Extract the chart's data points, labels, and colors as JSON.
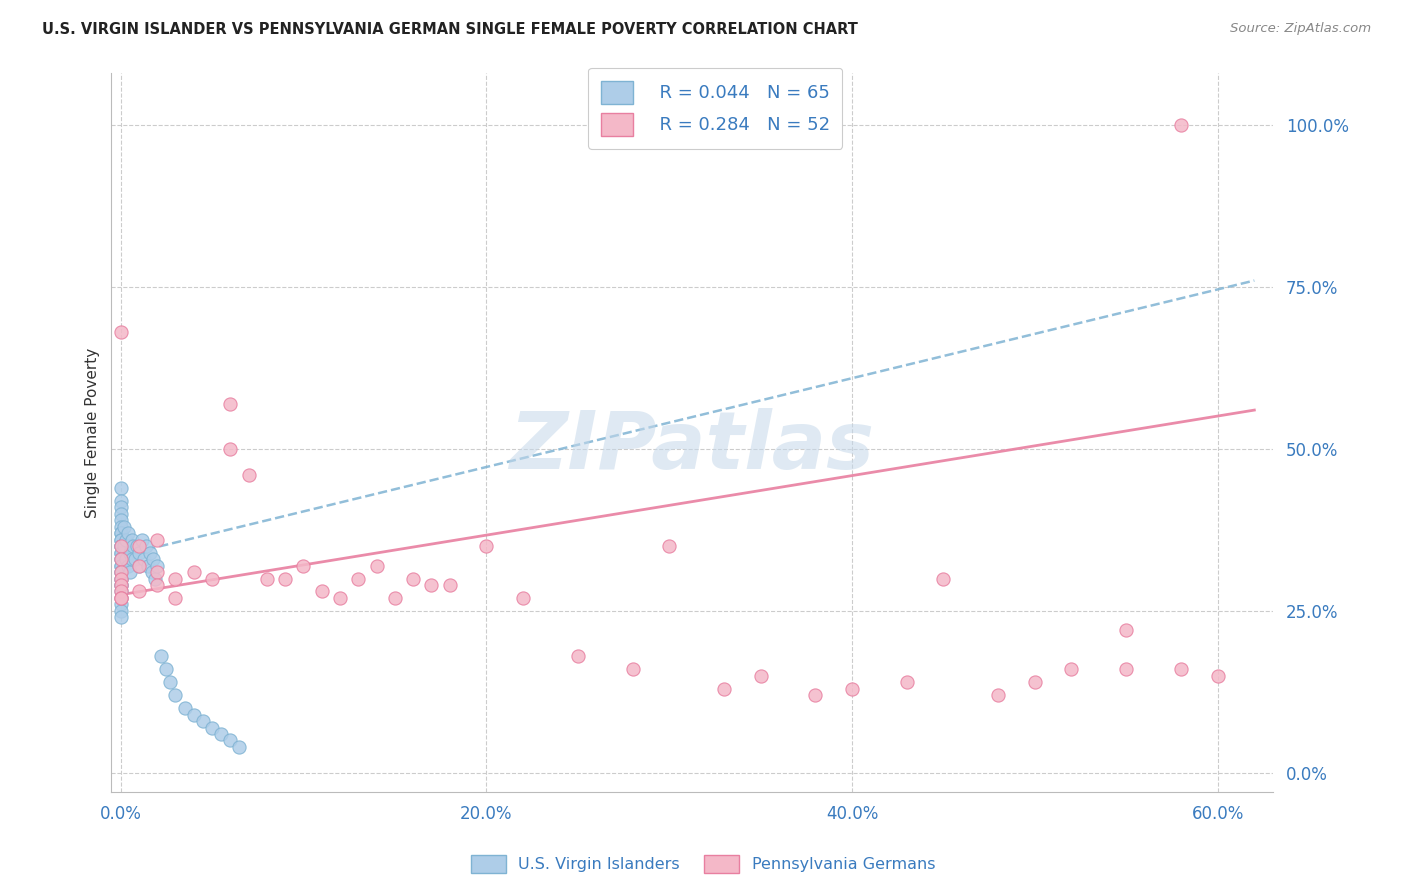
{
  "title": "U.S. VIRGIN ISLANDER VS PENNSYLVANIA GERMAN SINGLE FEMALE POVERTY CORRELATION CHART",
  "source": "Source: ZipAtlas.com",
  "ylabel": "Single Female Poverty",
  "xlim": [
    -0.005,
    0.63
  ],
  "ylim": [
    -0.03,
    1.08
  ],
  "x_tick_vals": [
    0.0,
    0.2,
    0.4,
    0.6
  ],
  "y_tick_vals": [
    0.0,
    0.25,
    0.5,
    0.75,
    1.0
  ],
  "legend_blue_label": "U.S. Virgin Islanders",
  "legend_pink_label": "Pennsylvania Germans",
  "R_blue": 0.044,
  "N_blue": 65,
  "R_pink": 0.284,
  "N_pink": 52,
  "watermark": "ZIPatlas",
  "blue_scatter_x": [
    0.0,
    0.0,
    0.0,
    0.0,
    0.0,
    0.0,
    0.0,
    0.0,
    0.0,
    0.0,
    0.0,
    0.0,
    0.0,
    0.0,
    0.0,
    0.0,
    0.0,
    0.0,
    0.0,
    0.0,
    0.0,
    0.0,
    0.0,
    0.0,
    0.0,
    0.0,
    0.0,
    0.0,
    0.0,
    0.0,
    0.002,
    0.002,
    0.003,
    0.003,
    0.004,
    0.004,
    0.005,
    0.005,
    0.006,
    0.006,
    0.007,
    0.008,
    0.009,
    0.01,
    0.01,
    0.012,
    0.013,
    0.014,
    0.015,
    0.016,
    0.017,
    0.018,
    0.019,
    0.02,
    0.022,
    0.025,
    0.027,
    0.03,
    0.035,
    0.04,
    0.045,
    0.05,
    0.055,
    0.06,
    0.065
  ],
  "blue_scatter_y": [
    0.44,
    0.42,
    0.41,
    0.4,
    0.39,
    0.38,
    0.37,
    0.37,
    0.36,
    0.36,
    0.35,
    0.35,
    0.35,
    0.34,
    0.34,
    0.33,
    0.33,
    0.32,
    0.32,
    0.31,
    0.31,
    0.3,
    0.3,
    0.29,
    0.29,
    0.28,
    0.27,
    0.26,
    0.25,
    0.24,
    0.38,
    0.35,
    0.36,
    0.33,
    0.37,
    0.32,
    0.34,
    0.31,
    0.36,
    0.33,
    0.35,
    0.33,
    0.35,
    0.34,
    0.32,
    0.36,
    0.33,
    0.35,
    0.32,
    0.34,
    0.31,
    0.33,
    0.3,
    0.32,
    0.18,
    0.16,
    0.14,
    0.12,
    0.1,
    0.09,
    0.08,
    0.07,
    0.06,
    0.05,
    0.04
  ],
  "pink_scatter_x": [
    0.0,
    0.0,
    0.0,
    0.0,
    0.0,
    0.0,
    0.0,
    0.0,
    0.01,
    0.01,
    0.02,
    0.02,
    0.03,
    0.03,
    0.04,
    0.05,
    0.06,
    0.06,
    0.07,
    0.08,
    0.09,
    0.1,
    0.11,
    0.12,
    0.13,
    0.14,
    0.15,
    0.16,
    0.17,
    0.18,
    0.2,
    0.22,
    0.25,
    0.28,
    0.3,
    0.33,
    0.35,
    0.38,
    0.4,
    0.43,
    0.45,
    0.48,
    0.5,
    0.52,
    0.55,
    0.55,
    0.58,
    0.6,
    0.0,
    0.01,
    0.02,
    0.58
  ],
  "pink_scatter_y": [
    0.35,
    0.33,
    0.31,
    0.3,
    0.29,
    0.28,
    0.27,
    0.27,
    0.32,
    0.28,
    0.31,
    0.29,
    0.3,
    0.27,
    0.31,
    0.3,
    0.57,
    0.5,
    0.46,
    0.3,
    0.3,
    0.32,
    0.28,
    0.27,
    0.3,
    0.32,
    0.27,
    0.3,
    0.29,
    0.29,
    0.35,
    0.27,
    0.18,
    0.16,
    0.35,
    0.13,
    0.15,
    0.12,
    0.13,
    0.14,
    0.3,
    0.12,
    0.14,
    0.16,
    0.22,
    0.16,
    0.16,
    0.15,
    0.68,
    0.35,
    0.36,
    1.0
  ],
  "blue_trend_x": [
    0.0,
    0.62
  ],
  "blue_trend_y": [
    0.335,
    0.76
  ],
  "pink_trend_x": [
    0.0,
    0.62
  ],
  "pink_trend_y": [
    0.275,
    0.56
  ]
}
